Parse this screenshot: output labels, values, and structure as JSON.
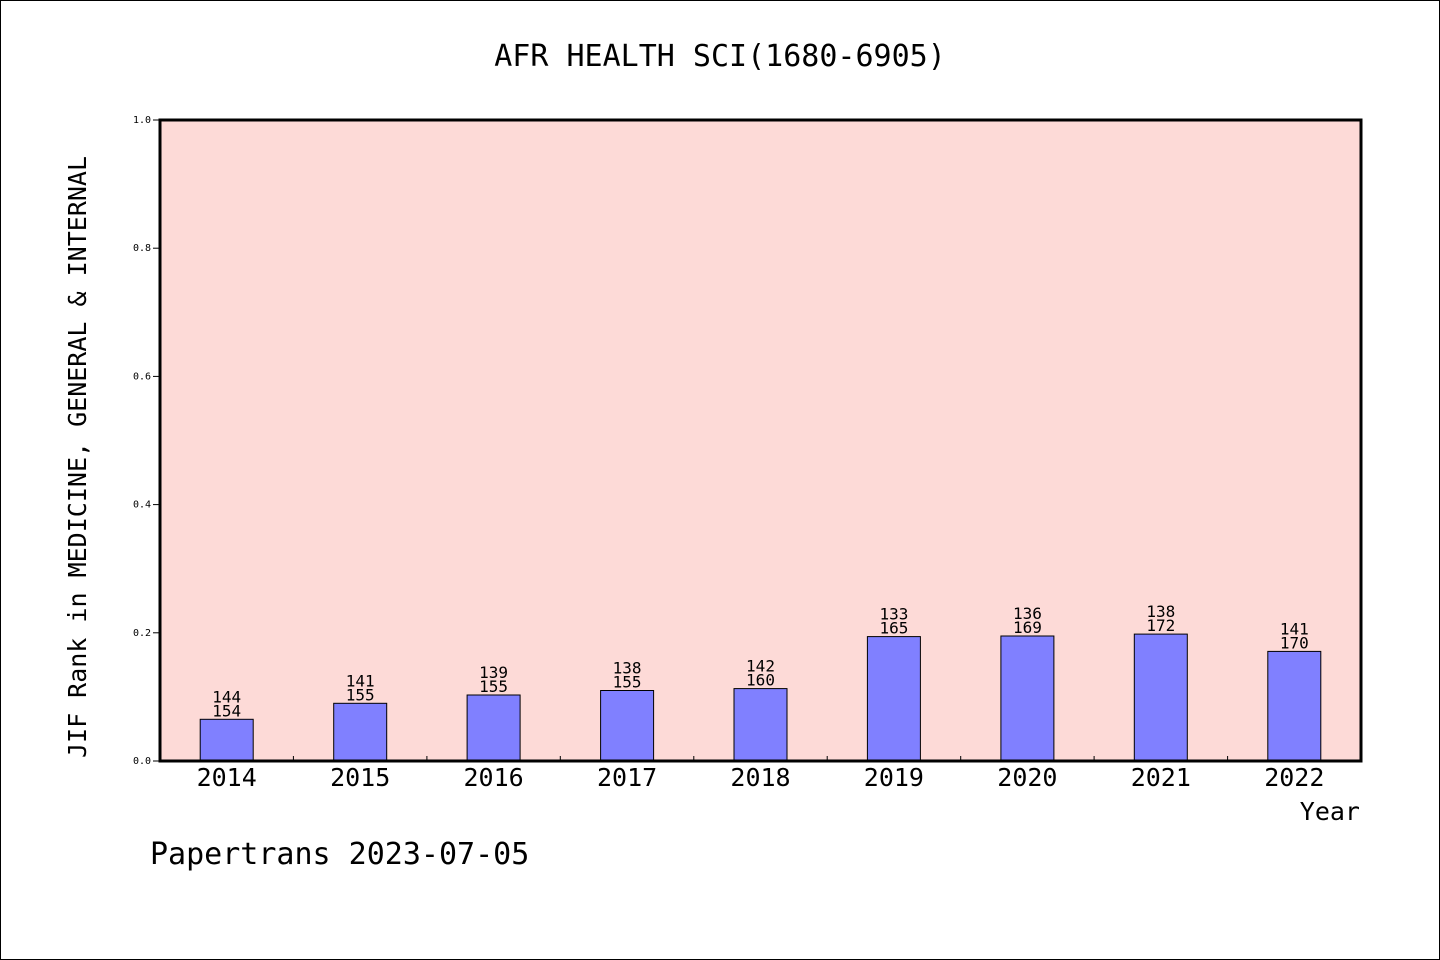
{
  "chart_data": {
    "type": "bar",
    "title": "AFR HEALTH SCI(1680-6905)",
    "xlabel": "Year",
    "ylabel": "JIF Rank in MEDICINE, GENERAL & INTERNAL",
    "categories": [
      "2014",
      "2015",
      "2016",
      "2017",
      "2018",
      "2019",
      "2020",
      "2021",
      "2022"
    ],
    "values": [
      0.065,
      0.09,
      0.103,
      0.11,
      0.113,
      0.194,
      0.195,
      0.198,
      0.171
    ],
    "rank_labels": [
      "144",
      "141",
      "139",
      "138",
      "142",
      "133",
      "136",
      "138",
      "141"
    ],
    "total_labels": [
      "154",
      "155",
      "155",
      "155",
      "160",
      "165",
      "169",
      "172",
      "170"
    ],
    "ylim": [
      0,
      1.0
    ],
    "yticks": [
      "0.0",
      "0.2",
      "0.4",
      "0.6",
      "0.8",
      "1.0"
    ],
    "grid": false,
    "colors": {
      "plot_background": "#fddad7",
      "bar_fill": "#8080ff",
      "bar_stroke": "#000000"
    }
  },
  "footer": {
    "text": "Papertrans 2023-07-05"
  }
}
